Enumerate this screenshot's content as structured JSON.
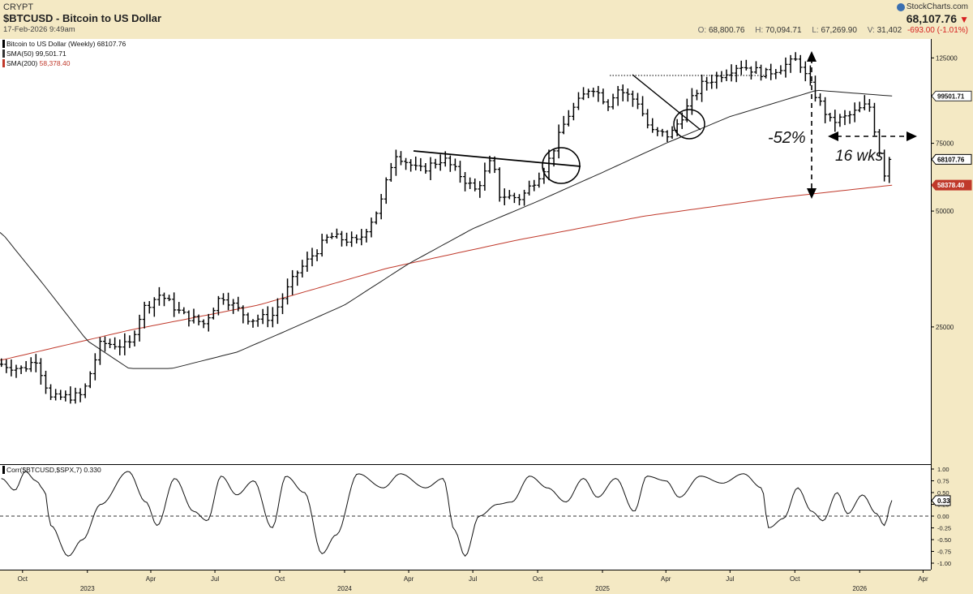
{
  "header": {
    "exchange": "CRYPT",
    "title": "$BTCUSD - Bitcoin to US Dollar",
    "date": "17-Feb-2026 9:49am",
    "brand": "StockCharts.com",
    "last_price": "68,107.76",
    "open_label": "O:",
    "open": "68,800.76",
    "high_label": "H:",
    "high": "70,094.71",
    "low_label": "L:",
    "low": "67,269.90",
    "volume_label": "V:",
    "volume": "31,402",
    "change": "-693.00 (-1.01%)",
    "down_color": "#d62020"
  },
  "legend": [
    {
      "label": "Bitcoin to US Dollar (Weekly) 68107.76",
      "color": "#000000"
    },
    {
      "label": "SMA(50)",
      "value": "99,501.71",
      "color": "#333333"
    },
    {
      "label": "SMA(200)",
      "value": "58,378.40",
      "color": "#c0392b"
    }
  ],
  "annotations": {
    "drawdown": "-52%",
    "duration": "16 wks"
  },
  "chart_data": [
    {
      "type": "ohlc",
      "title": "$BTCUSD - Bitcoin to US Dollar",
      "period": "Weekly",
      "scale": "log",
      "ylim": [
        11000,
        140000
      ],
      "y_ticks": [
        125000,
        100000,
        75000,
        50000,
        25000
      ],
      "y_tick_labels": [
        "125000",
        "100000",
        "75000",
        "50000",
        "25000"
      ],
      "x_tick_labels": [
        "Oct",
        "2023",
        "Apr",
        "Jul",
        "Oct",
        "2024",
        "Apr",
        "Jul",
        "Oct",
        "2025",
        "Apr",
        "Jul",
        "Oct",
        "2026",
        "Apr"
      ],
      "price_tags": [
        {
          "value": 99501.71,
          "label": "99501.71",
          "style": "sma50"
        },
        {
          "value": 68107.76,
          "label": "68107.76",
          "style": "price"
        },
        {
          "value": 58378.4,
          "label": "58378.40",
          "style": "sma200"
        }
      ],
      "close_anchors": [
        [
          "2022-09-01",
          20000
        ],
        [
          "2022-10-01",
          19400
        ],
        [
          "2022-10-20",
          20600
        ],
        [
          "2022-11-10",
          16300
        ],
        [
          "2022-12-25",
          16600
        ],
        [
          "2023-01-20",
          22700
        ],
        [
          "2023-03-01",
          22300
        ],
        [
          "2023-03-20",
          27800
        ],
        [
          "2023-04-14",
          30400
        ],
        [
          "2023-05-15",
          27000
        ],
        [
          "2023-06-15",
          25500
        ],
        [
          "2023-07-10",
          30300
        ],
        [
          "2023-08-20",
          26100
        ],
        [
          "2023-09-20",
          26600
        ],
        [
          "2023-10-25",
          34500
        ],
        [
          "2023-12-10",
          43000
        ],
        [
          "2024-01-20",
          41500
        ],
        [
          "2024-02-20",
          51500
        ],
        [
          "2024-03-12",
          71000
        ],
        [
          "2024-04-15",
          63500
        ],
        [
          "2024-05-20",
          68500
        ],
        [
          "2024-07-05",
          56500
        ],
        [
          "2024-07-28",
          68000
        ],
        [
          "2024-08-08",
          55000
        ],
        [
          "2024-09-07",
          54000
        ],
        [
          "2024-10-14",
          66000
        ],
        [
          "2024-11-12",
          88000
        ],
        [
          "2024-12-16",
          106000
        ],
        [
          "2025-01-10",
          94500
        ],
        [
          "2025-01-20",
          104500
        ],
        [
          "2025-02-20",
          96000
        ],
        [
          "2025-03-10",
          80500
        ],
        [
          "2025-04-07",
          78500
        ],
        [
          "2025-05-20",
          106000
        ],
        [
          "2025-07-14",
          120000
        ],
        [
          "2025-08-20",
          113500
        ],
        [
          "2025-10-06",
          124000
        ],
        [
          "2025-10-20",
          108000
        ],
        [
          "2025-11-21",
          85000
        ],
        [
          "2025-12-15",
          88000
        ],
        [
          "2026-01-14",
          95000
        ],
        [
          "2026-02-05",
          62700
        ],
        [
          "2026-02-16",
          68107
        ]
      ],
      "sma50_anchors": [
        [
          "2022-09-01",
          44000
        ],
        [
          "2022-11-01",
          32000
        ],
        [
          "2023-01-01",
          23000
        ],
        [
          "2023-03-01",
          19500
        ],
        [
          "2023-05-01",
          19500
        ],
        [
          "2023-08-01",
          21500
        ],
        [
          "2023-10-01",
          24000
        ],
        [
          "2024-01-01",
          28500
        ],
        [
          "2024-04-01",
          36500
        ],
        [
          "2024-07-01",
          45000
        ],
        [
          "2024-10-01",
          53000
        ],
        [
          "2025-01-01",
          63000
        ],
        [
          "2025-04-01",
          75000
        ],
        [
          "2025-07-01",
          88000
        ],
        [
          "2025-10-01",
          99000
        ],
        [
          "2025-11-01",
          103000
        ],
        [
          "2026-02-16",
          99501.71
        ]
      ],
      "sma200_anchors": [
        [
          "2022-09-01",
          20500
        ],
        [
          "2023-03-01",
          24500
        ],
        [
          "2023-09-01",
          28500
        ],
        [
          "2024-03-01",
          35500
        ],
        [
          "2024-09-01",
          42000
        ],
        [
          "2025-03-01",
          48500
        ],
        [
          "2025-09-01",
          54000
        ],
        [
          "2026-02-16",
          58378.4
        ]
      ]
    },
    {
      "type": "line",
      "title": "Corr($BTCUSD,$SPX,7) 0.330",
      "ylim": [
        -1,
        1
      ],
      "y_ticks": [
        1,
        0.75,
        0.5,
        0.25,
        0,
        -0.25,
        -0.5,
        -0.75,
        -1
      ],
      "y_tick_labels": [
        "1.00",
        "0.75",
        "0.50",
        "0.25",
        "0.00",
        "-0.25",
        "-0.50",
        "-0.75",
        "-1.00"
      ],
      "last_value": 0.33,
      "last_label": "0.33",
      "anchors": [
        [
          "2022-09-01",
          0.8
        ],
        [
          "2022-09-20",
          0.55
        ],
        [
          "2022-10-05",
          0.95
        ],
        [
          "2022-10-20",
          0.75
        ],
        [
          "2022-11-01",
          0.55
        ],
        [
          "2022-11-10",
          -0.2
        ],
        [
          "2022-12-05",
          -0.85
        ],
        [
          "2022-12-25",
          -0.5
        ],
        [
          "2023-01-20",
          0.25
        ],
        [
          "2023-02-28",
          0.95
        ],
        [
          "2023-03-25",
          0.3
        ],
        [
          "2023-04-10",
          -0.2
        ],
        [
          "2023-05-05",
          0.8
        ],
        [
          "2023-06-01",
          0.1
        ],
        [
          "2023-06-20",
          -0.1
        ],
        [
          "2023-07-10",
          0.85
        ],
        [
          "2023-08-01",
          0.45
        ],
        [
          "2023-08-25",
          0.75
        ],
        [
          "2023-09-20",
          -0.25
        ],
        [
          "2023-10-10",
          0.85
        ],
        [
          "2023-11-05",
          0.5
        ],
        [
          "2023-11-30",
          -0.8
        ],
        [
          "2023-12-20",
          -0.4
        ],
        [
          "2024-01-20",
          0.9
        ],
        [
          "2024-02-25",
          0.6
        ],
        [
          "2024-03-20",
          0.9
        ],
        [
          "2024-04-25",
          0.6
        ],
        [
          "2024-05-20",
          0.8
        ],
        [
          "2024-06-05",
          -0.3
        ],
        [
          "2024-06-20",
          -0.85
        ],
        [
          "2024-07-10",
          0.0
        ],
        [
          "2024-08-05",
          0.25
        ],
        [
          "2024-08-25",
          0.3
        ],
        [
          "2024-09-20",
          0.85
        ],
        [
          "2024-10-15",
          0.6
        ],
        [
          "2024-11-10",
          0.3
        ],
        [
          "2024-12-05",
          0.8
        ],
        [
          "2024-12-25",
          0.4
        ],
        [
          "2025-01-20",
          0.8
        ],
        [
          "2025-02-15",
          0.1
        ],
        [
          "2025-03-05",
          0.85
        ],
        [
          "2025-04-01",
          0.75
        ],
        [
          "2025-04-20",
          0.4
        ],
        [
          "2025-05-20",
          0.85
        ],
        [
          "2025-06-20",
          0.7
        ],
        [
          "2025-07-20",
          0.9
        ],
        [
          "2025-08-15",
          0.6
        ],
        [
          "2025-08-25",
          -0.25
        ],
        [
          "2025-09-15",
          -0.05
        ],
        [
          "2025-10-05",
          0.6
        ],
        [
          "2025-10-25",
          0.1
        ],
        [
          "2025-11-10",
          -0.1
        ],
        [
          "2025-11-30",
          0.5
        ],
        [
          "2025-12-15",
          0.05
        ],
        [
          "2026-01-05",
          0.45
        ],
        [
          "2026-01-25",
          0.05
        ],
        [
          "2026-02-05",
          -0.2
        ],
        [
          "2026-02-16",
          0.33
        ]
      ]
    }
  ]
}
